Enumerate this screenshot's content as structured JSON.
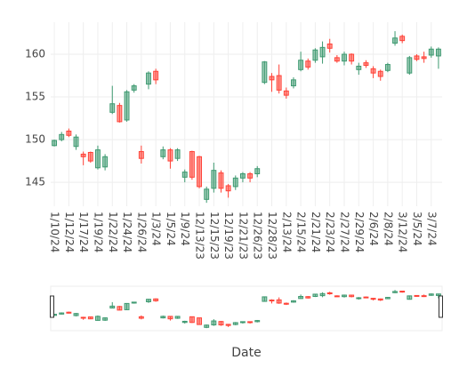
{
  "chart_data": {
    "type": "candlestick",
    "x_label": "Date",
    "categories": [
      "1/10/24",
      null,
      "1/12/24",
      null,
      "1/17/24",
      null,
      "1/19/24",
      null,
      "1/22/24",
      null,
      "1/24/24",
      null,
      "1/26/24",
      null,
      "1/3/24",
      null,
      "1/5/24",
      null,
      "1/9/24",
      null,
      "12/13/23",
      null,
      "12/15/23",
      null,
      "12/19/23",
      null,
      "12/21/23",
      null,
      "12/26/23",
      null,
      "12/28/23",
      null,
      "2/13/24",
      null,
      "2/15/24",
      null,
      "2/21/24",
      null,
      "2/23/24",
      null,
      "2/27/24",
      null,
      "2/29/24",
      null,
      "2/6/24",
      null,
      "2/8/24",
      null,
      "3/12/24",
      null,
      "3/5/24",
      null,
      "3/7/24",
      null
    ],
    "open": [
      149.3,
      150,
      151,
      149.2,
      148.3,
      148.5,
      146.7,
      146.8,
      153.2,
      154,
      152.3,
      155.8,
      148.6,
      156.5,
      158,
      148,
      148.8,
      147.8,
      145.6,
      148.6,
      148,
      143,
      144.3,
      146.1,
      144.6,
      144.5,
      145.5,
      146,
      146,
      156.7,
      157.4,
      157.5,
      155.7,
      156.3,
      158.2,
      159.2,
      159.3,
      159.7,
      161.2,
      159.6,
      159.2,
      160,
      158.2,
      159,
      158.3,
      158,
      158.1,
      161.3,
      162.1,
      157.8,
      159.8,
      159.7,
      159.9,
      159.8
    ],
    "high": [
      150,
      150.9,
      151.3,
      150.6,
      148.6,
      148.6,
      149.3,
      148.3,
      156.3,
      154.3,
      155.8,
      156.5,
      149.3,
      158,
      158.3,
      149.2,
      149,
      149,
      146.5,
      148.7,
      148.1,
      144.5,
      147.3,
      146.4,
      144.8,
      145.8,
      146.2,
      146.2,
      146.9,
      159.2,
      157.8,
      158.8,
      156.1,
      157.3,
      160.3,
      159.5,
      160.7,
      161.5,
      161.8,
      159.9,
      160.3,
      160.1,
      159,
      159.3,
      158.6,
      158.2,
      159,
      162.7,
      162.3,
      159.8,
      160,
      160.3,
      160.9,
      160.8
    ],
    "low": [
      149.2,
      149.8,
      150.3,
      148.8,
      147,
      147.3,
      146.5,
      146.4,
      153,
      152,
      152.1,
      155.5,
      147.2,
      155.9,
      156.5,
      147.7,
      146.6,
      147.5,
      145,
      145.3,
      144.3,
      142.6,
      143.8,
      143.8,
      143.2,
      144.1,
      145,
      145,
      145.6,
      156.5,
      155.6,
      155.4,
      154.8,
      156,
      158,
      158.2,
      159,
      158.9,
      160.2,
      159,
      158.7,
      158.8,
      157.6,
      158.4,
      157.2,
      156.9,
      157.9,
      161,
      161.3,
      157.6,
      159.2,
      159,
      159.6,
      158.3
    ],
    "close": [
      149.9,
      150.6,
      150.5,
      150.3,
      148,
      147.5,
      148.8,
      148,
      154.2,
      152.1,
      155.6,
      156.3,
      147.8,
      157.8,
      157,
      148.8,
      147.5,
      148.8,
      146.2,
      145.6,
      144.5,
      144.2,
      146.4,
      144.3,
      144,
      145.5,
      146,
      145.5,
      146.6,
      159.1,
      157,
      155.8,
      155.2,
      157,
      159.3,
      158.5,
      160.5,
      160.8,
      160.7,
      159.2,
      160,
      159.2,
      158.6,
      158.7,
      157.8,
      157.4,
      158.8,
      161.9,
      161.6,
      159.6,
      159.4,
      159.5,
      160.6,
      160.6
    ],
    "increasing_color": "#3d9970",
    "decreasing_color": "#ff4136",
    "ylim": [
      142.2,
      163.75
    ],
    "yticks": [
      145,
      150,
      155,
      160
    ],
    "grid": true,
    "rangeslider": true
  }
}
